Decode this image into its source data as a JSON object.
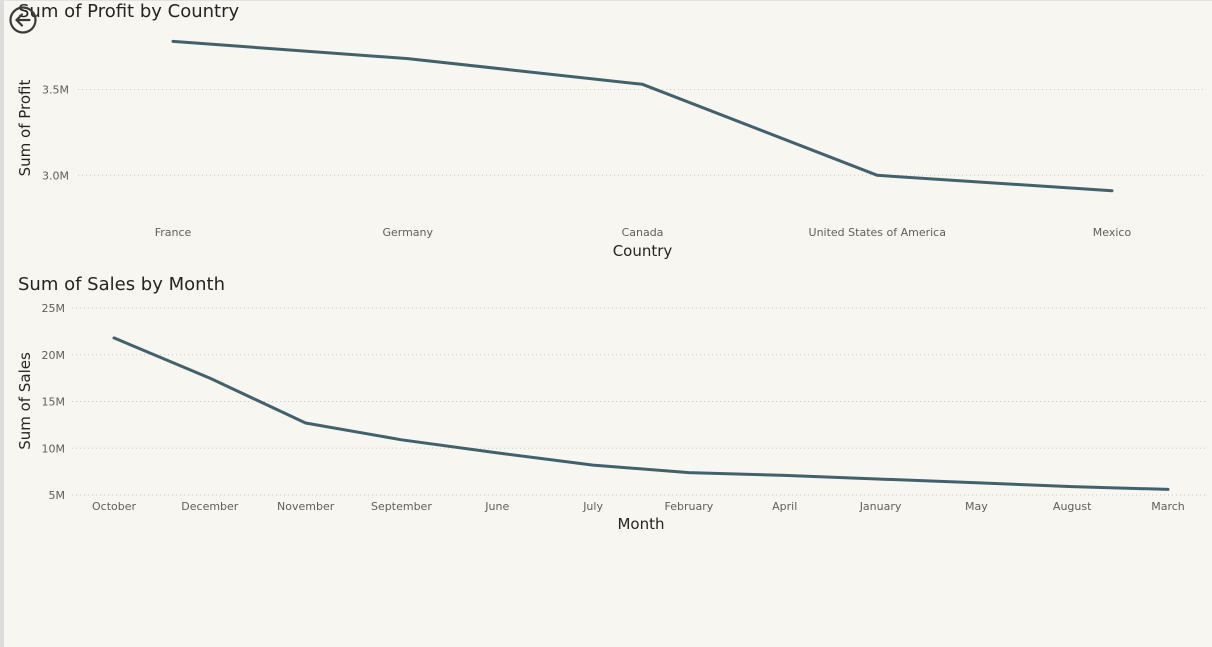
{
  "back_button": {
    "icon": "back-arrow-icon"
  },
  "chart_data": [
    {
      "type": "line",
      "title": "Sum of Profit by Country",
      "xlabel": "Country",
      "ylabel": "Sum of Profit",
      "categories": [
        "France",
        "Germany",
        "Canada",
        "United States of America",
        "Mexico"
      ],
      "values": [
        3.78,
        3.68,
        3.53,
        3.0,
        2.91
      ],
      "ylim": [
        2.85,
        3.8
      ],
      "yticks": [
        3.0,
        3.5
      ],
      "ytick_labels": [
        "3.0M",
        "3.5M"
      ],
      "grid": true,
      "color": "#41626c"
    },
    {
      "type": "line",
      "title": "Sum of Sales by Month",
      "xlabel": "Month",
      "ylabel": "Sum of Sales",
      "categories": [
        "October",
        "December",
        "November",
        "September",
        "June",
        "July",
        "February",
        "April",
        "January",
        "May",
        "August",
        "March"
      ],
      "values": [
        21.8,
        17.5,
        12.7,
        10.9,
        9.5,
        8.2,
        7.4,
        7.1,
        6.7,
        6.3,
        5.9,
        5.6
      ],
      "ylim": [
        5,
        25
      ],
      "yticks": [
        5,
        10,
        15,
        20,
        25
      ],
      "ytick_labels": [
        "5M",
        "10M",
        "15M",
        "20M",
        "25M"
      ],
      "grid": true,
      "color": "#41626c"
    }
  ]
}
